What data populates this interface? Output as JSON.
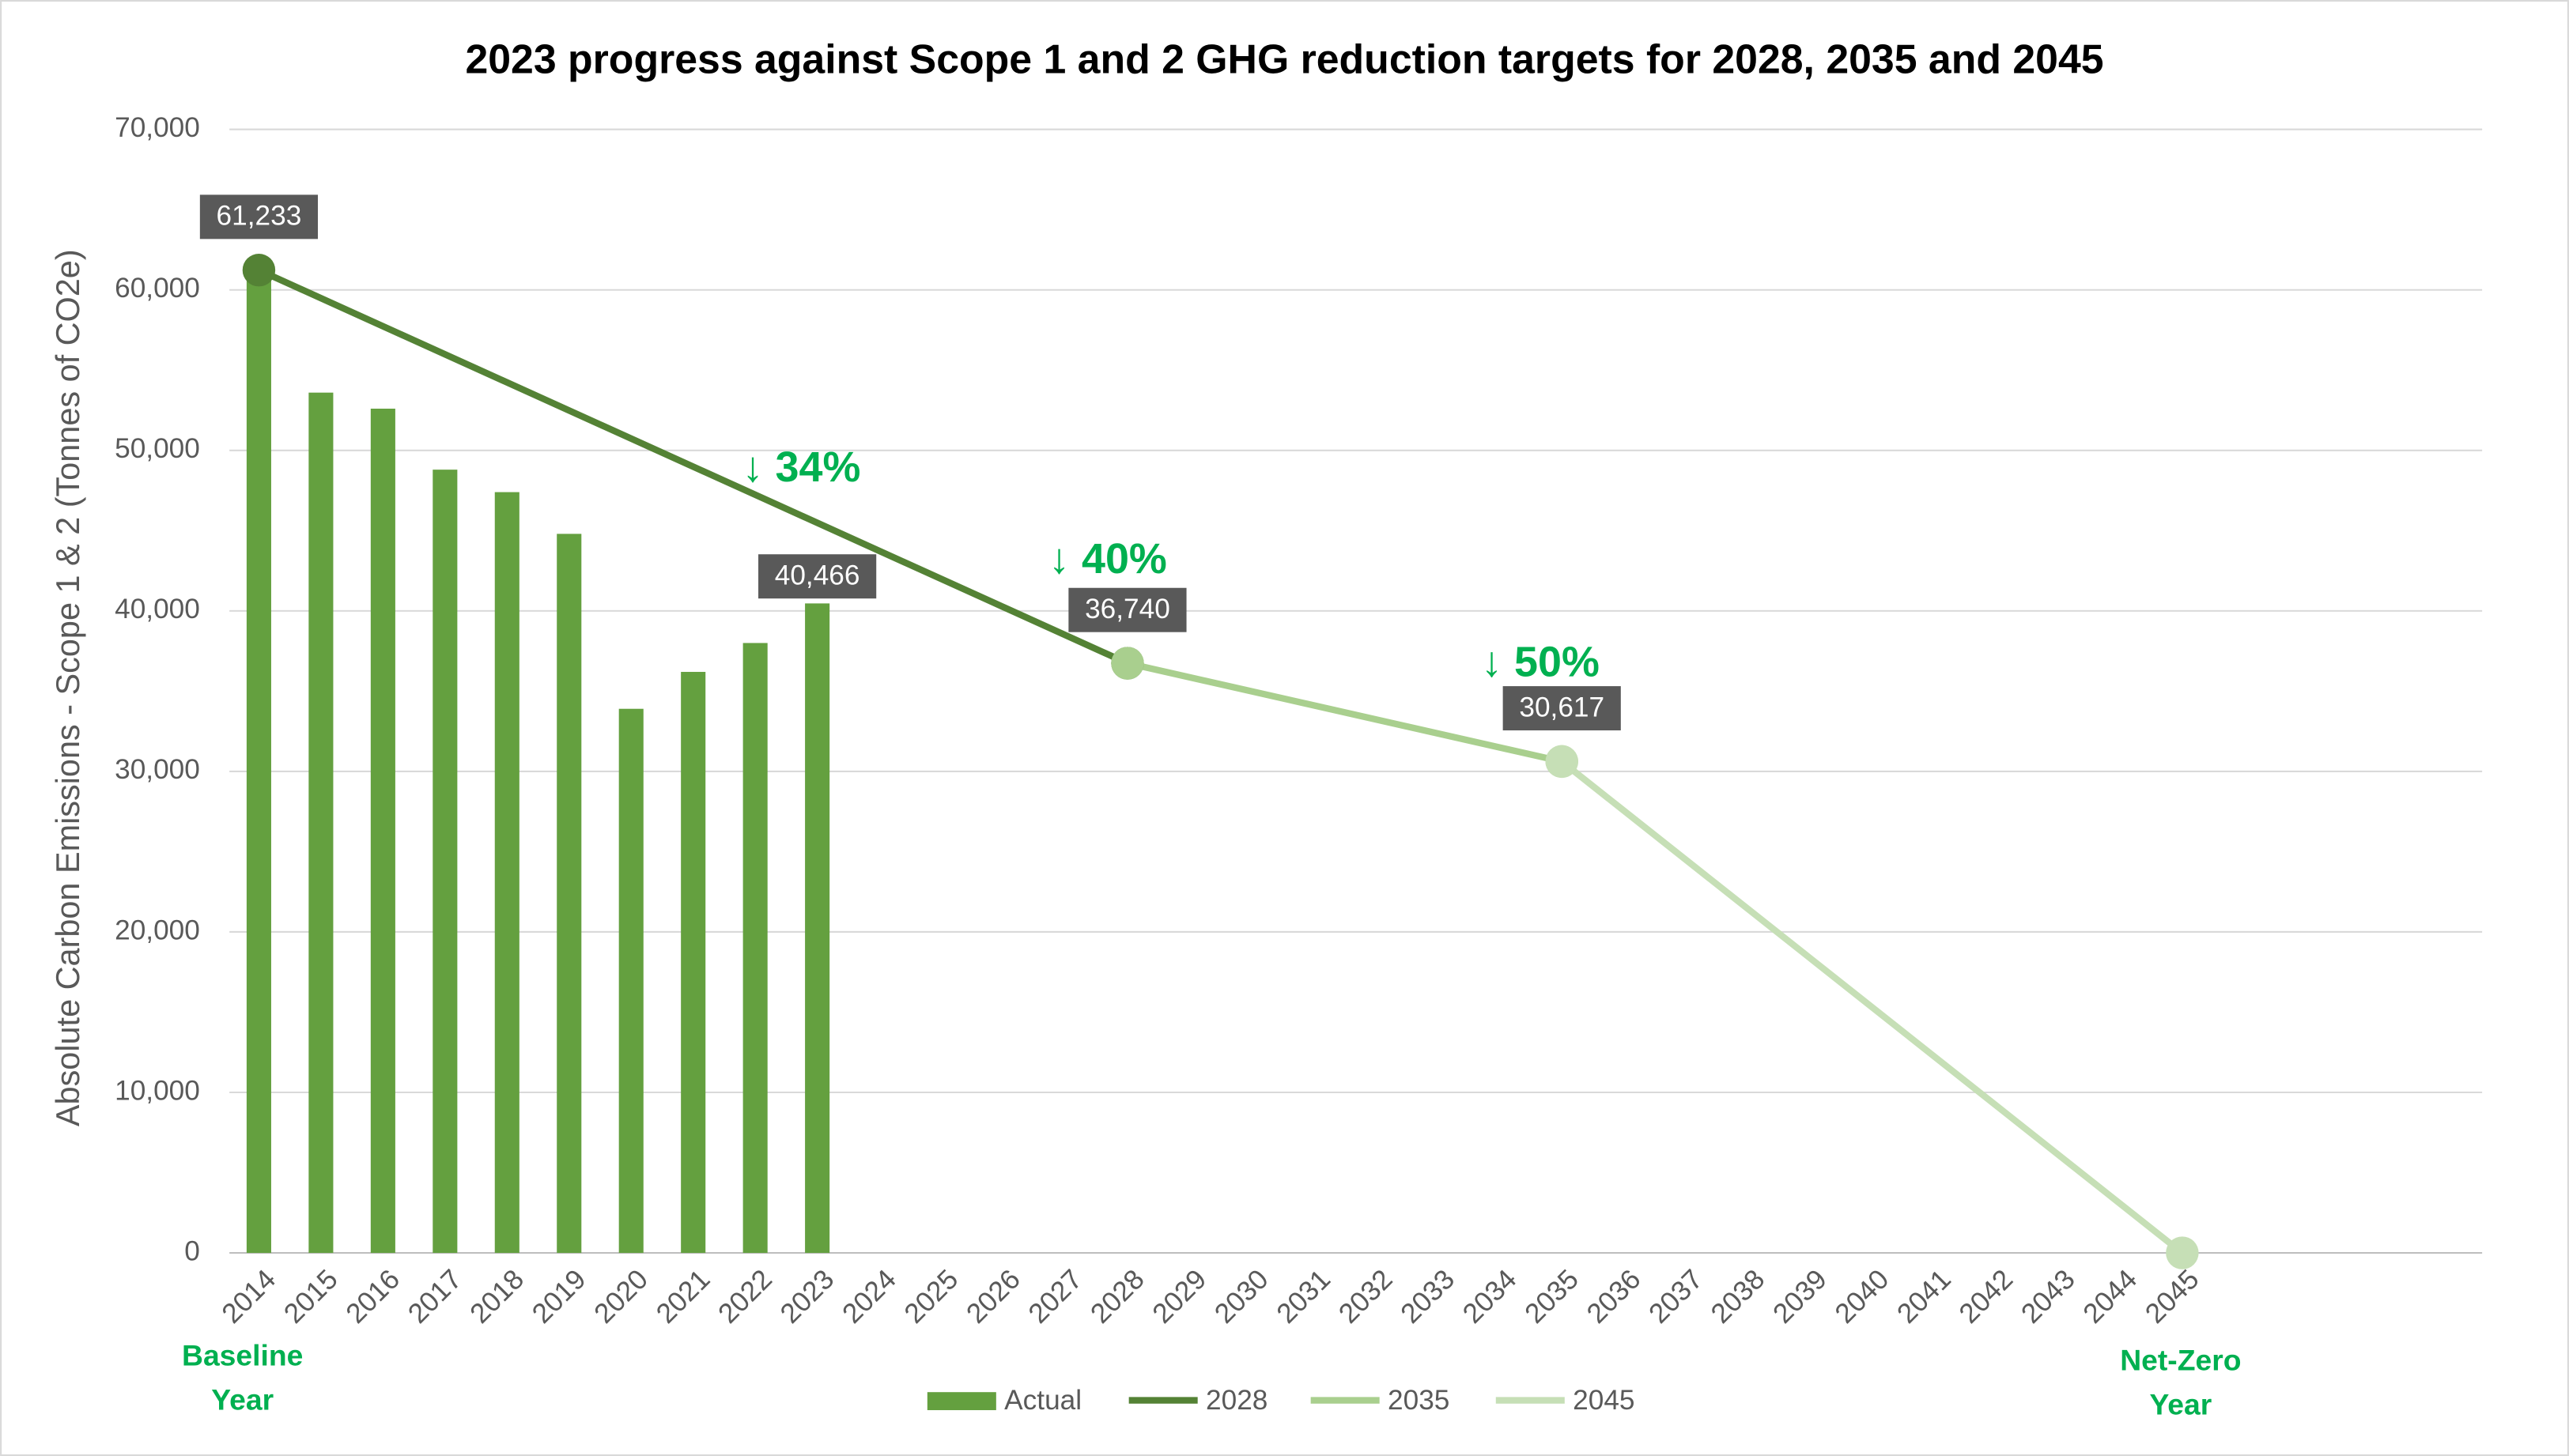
{
  "chart_data": {
    "type": "bar",
    "title": "2023 progress against Scope 1 and 2 GHG reduction targets for 2028, 2035 and 2045",
    "y_label": "Absolute Carbon Emissions - Scope 1 & 2 (Tonnes of CO2e)",
    "x": [
      2014,
      2015,
      2016,
      2017,
      2018,
      2019,
      2020,
      2021,
      2022,
      2023,
      2024,
      2025,
      2026,
      2027,
      2028,
      2029,
      2030,
      2031,
      2032,
      2033,
      2034,
      2035,
      2036,
      2037,
      2038,
      2039,
      2040,
      2041,
      2042,
      2043,
      2044,
      2045
    ],
    "ylim": [
      0,
      70000
    ],
    "yticks": [
      0,
      {
        "value": 10000,
        "label": "10,000"
      },
      {
        "value": 20000,
        "label": "20,000"
      },
      {
        "value": 30000,
        "label": "30,000"
      },
      {
        "value": 40000,
        "label": "40,000"
      },
      {
        "value": 50000,
        "label": "50,000"
      },
      {
        "value": 60000,
        "label": "60,000"
      },
      {
        "value": 70000,
        "label": "70,000"
      }
    ],
    "grid": true,
    "legend": "bottom",
    "bars": {
      "name": "Actual",
      "color": "#64a03f",
      "values": [
        61233,
        53600,
        52600,
        48800,
        47400,
        44800,
        33900,
        36200,
        38000,
        40466,
        null,
        null,
        null,
        null,
        null,
        null,
        null,
        null,
        null,
        null,
        null,
        null,
        null,
        null,
        null,
        null,
        null,
        null,
        null,
        null,
        null,
        null
      ],
      "value_labels": [
        null,
        null,
        null,
        null,
        null,
        null,
        null,
        null,
        null,
        "40,466",
        null,
        null,
        null,
        null,
        null,
        null,
        null,
        null,
        null,
        null,
        null,
        null,
        null,
        null,
        null,
        null,
        null,
        null,
        null,
        null,
        null,
        null
      ]
    },
    "series": [
      {
        "name": "2028",
        "color": "#548235",
        "x": [
          2014,
          2028
        ],
        "values": [
          61233,
          36740
        ],
        "value_labels": [
          "61,233",
          "36,740"
        ]
      },
      {
        "name": "2035",
        "color": "#a9cf8e",
        "x": [
          2028,
          2035
        ],
        "values": [
          36740,
          30617
        ],
        "value_labels": [
          null,
          "30,617"
        ]
      },
      {
        "name": "2045",
        "color": "#c6dfb6",
        "x": [
          2035,
          2045
        ],
        "values": [
          30617,
          0
        ]
      }
    ],
    "annotations": [
      "↓ 34%",
      "↓ 40%",
      "↓ 50%"
    ],
    "notes": [
      [
        "Baseline",
        "Year"
      ],
      [
        "Net-Zero",
        "Year"
      ]
    ]
  }
}
